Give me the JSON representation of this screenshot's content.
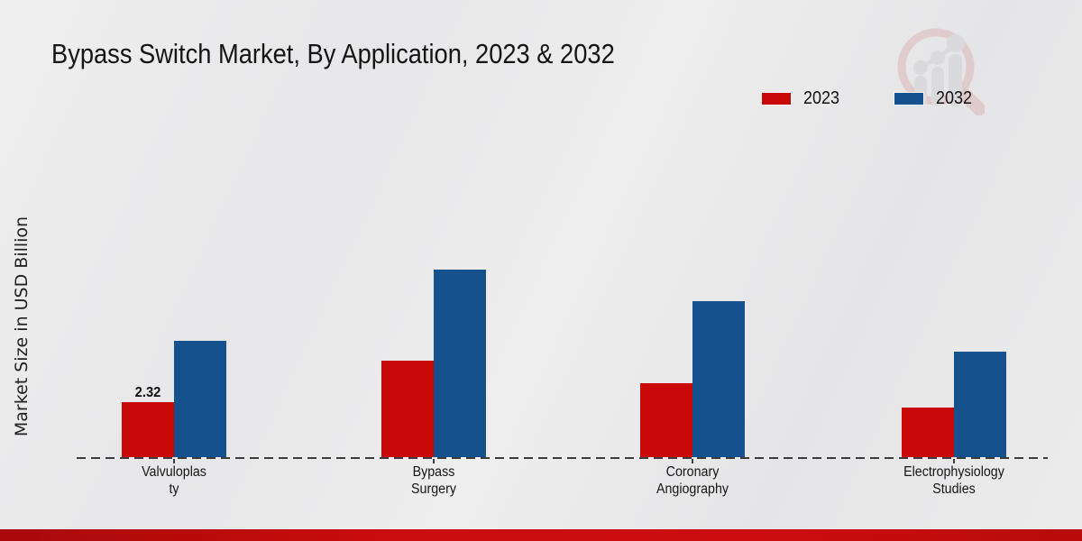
{
  "header": {
    "title": "Bypass Switch Market, By Application, 2023 & 2032"
  },
  "axes": {
    "ylabel": "Market Size in USD Billion"
  },
  "legend": {
    "items": [
      {
        "label": "2023",
        "color": "#c90808"
      },
      {
        "label": "2032",
        "color": "#15518d"
      }
    ]
  },
  "logo": {
    "name": "market-research-watermark-logo"
  },
  "footer": {
    "accent_color": "#c90c0c"
  },
  "chart_data": {
    "type": "bar",
    "title": "Bypass Switch Market, By Application, 2023 & 2032",
    "ylabel": "Market Size in USD Billion",
    "categories": [
      "Valvuloplasty",
      "Bypass Surgery",
      "Coronary Angiography",
      "Electrophysiology Studies"
    ],
    "category_label_lines": [
      [
        "Valvuloplas",
        "ty"
      ],
      [
        "Bypass",
        "Surgery"
      ],
      [
        "Coronary",
        "Angiography"
      ],
      [
        "Electrophysiology",
        "Studies"
      ]
    ],
    "series": [
      {
        "name": "2023",
        "color": "#c90808",
        "values": [
          2.32,
          4.05,
          3.11,
          2.08
        ]
      },
      {
        "name": "2032",
        "color": "#15518d",
        "values": [
          4.9,
          7.92,
          6.58,
          4.44
        ]
      }
    ],
    "data_labels": [
      {
        "series": "2023",
        "category": "Valvuloplasty",
        "text": "2.32"
      }
    ],
    "ylim": [
      0,
      9
    ],
    "grid": false,
    "baseline_style": "dashed",
    "legend_position": "top-right"
  }
}
